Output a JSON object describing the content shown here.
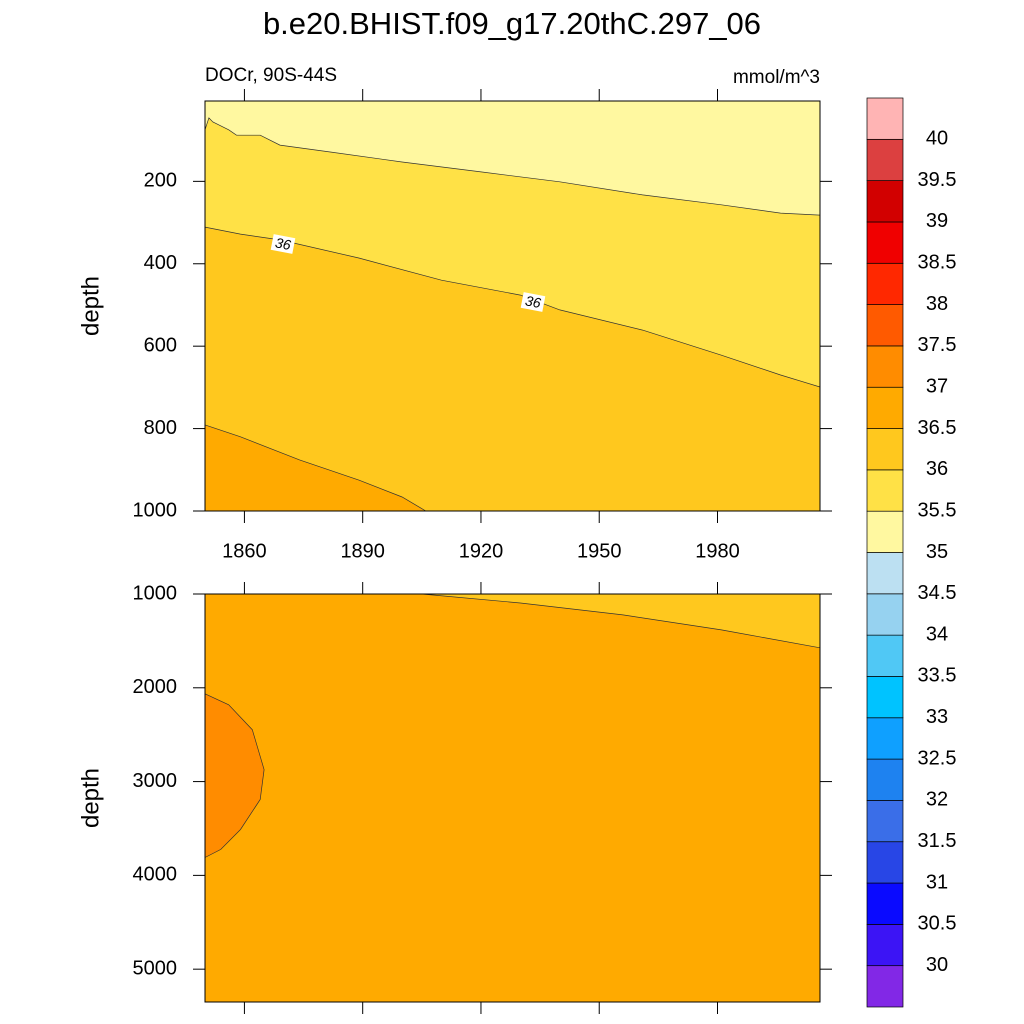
{
  "chart_data": {
    "type": "contour",
    "title": "b.e20.BHIST.f09_g17.20thC.297_06",
    "left_string": "DOCr, 90S-44S",
    "right_string": "mmol/m^3",
    "xlim": [
      1850,
      2006
    ],
    "xticks": [
      1860,
      1890,
      1920,
      1950,
      1980
    ],
    "panels": [
      {
        "ylabel": "depth",
        "ylim": [
          5,
          1000
        ],
        "yticks": [
          200,
          400,
          600,
          800,
          1000
        ],
        "xticklabels": true,
        "background": "#fff8a0",
        "contours": [
          {
            "level": 35.5,
            "fill": "#ffe146",
            "close": "bottom",
            "x": [
              1850,
              1851,
              1852,
              1856,
              1858,
              1864,
              1869,
              1882,
              1900,
              1920,
              1940,
              1961,
              1981,
              1996,
              2006
            ],
            "y": [
              75,
              46,
              56,
              75,
              88,
              88,
              112,
              129,
              153,
              177,
              201,
              233,
              257,
              277,
              282
            ]
          },
          {
            "level": 36,
            "fill": "#ffc81e",
            "close": "bottom",
            "x": [
              1850,
              1859,
              1869,
              1889,
              1910,
              1930,
              1940,
              1961,
              1981,
              1996,
              2006
            ],
            "y": [
              311,
              328,
              342,
              386,
              440,
              476,
              512,
              561,
              622,
              670,
              699
            ]
          },
          {
            "level": 36.5,
            "fill": "#ffaa00",
            "close": "bottom",
            "x": [
              1850,
              1859,
              1874,
              1889,
              1900,
              1906
            ],
            "y": [
              791,
              820,
              876,
              925,
              966,
              1000
            ]
          }
        ]
      },
      {
        "ylabel": "depth",
        "ylim": [
          1000,
          5350
        ],
        "yticks": [
          1000,
          2000,
          3000,
          4000,
          5000
        ],
        "xticklabels": false,
        "background": "#ffaa00",
        "contours": [
          {
            "level": 36.5,
            "fill": "#ffc81e",
            "close": "top",
            "x": [
              1905,
              1930,
              1956,
              1981,
              2006
            ],
            "y": [
              1000,
              1096,
              1223,
              1383,
              1574
            ]
          },
          {
            "level": 37,
            "fill": "#ff8c00",
            "close": "left",
            "x": [
              1850,
              1856,
              1862,
              1865,
              1864,
              1859,
              1854,
              1850
            ],
            "y": [
              2064,
              2181,
              2447,
              2872,
              3191,
              3511,
              3723,
              3809
            ]
          }
        ]
      }
    ],
    "colorbar": {
      "levels": [
        30,
        30.5,
        31,
        31.5,
        32,
        32.5,
        33,
        33.5,
        34,
        34.5,
        35,
        35.5,
        36,
        36.5,
        37,
        37.5,
        38,
        38.5,
        39,
        39.5,
        40
      ],
      "colors": [
        "#8228e6",
        "#3c14f5",
        "#0a0aff",
        "#2846e6",
        "#3a6ee8",
        "#1e82f0",
        "#0fa0ff",
        "#00c3ff",
        "#50c8f5",
        "#96d2f0",
        "#bce0f2",
        "#fff8a0",
        "#ffe146",
        "#ffc81e",
        "#ffaa00",
        "#ff8c00",
        "#ff5a00",
        "#ff2800",
        "#f00000",
        "#d20000",
        "#dc4040",
        "#ffb4b4"
      ]
    }
  }
}
